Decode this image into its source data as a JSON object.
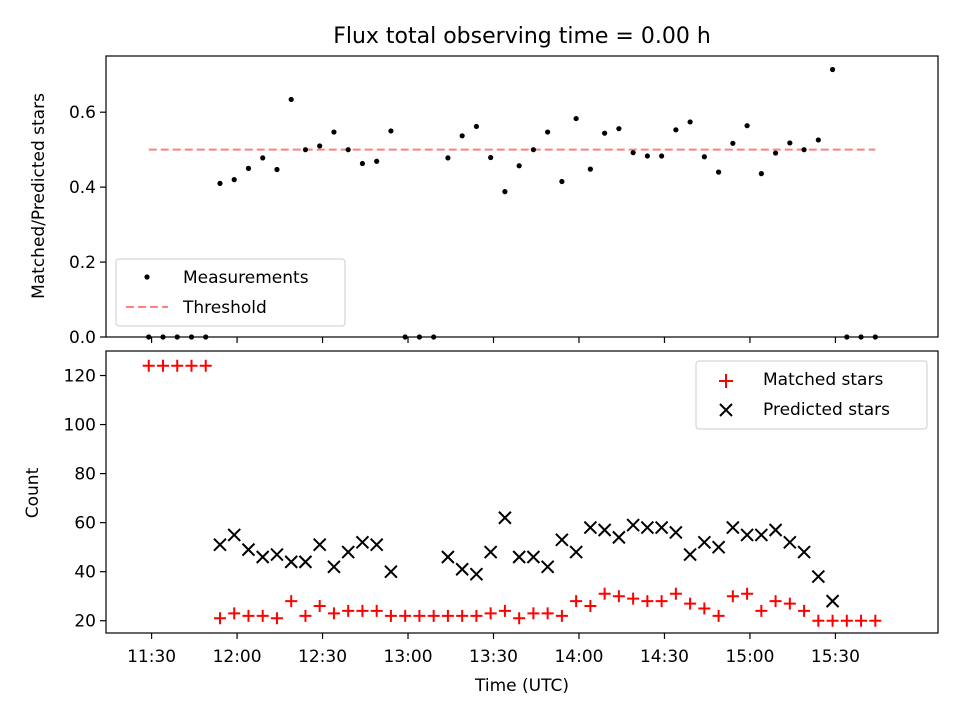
{
  "figure": {
    "title": "Flux total observing time = 0.00 h"
  },
  "chart_data": [
    {
      "type": "scatter",
      "ylabel": "Matched/Predicted stars",
      "xlim": [
        "11:14",
        "16:06"
      ],
      "ylim": [
        0,
        0.75
      ],
      "yticks": [
        "0.0",
        "0.2",
        "0.4",
        "0.6"
      ],
      "grid": false,
      "legend_placement": "lower-left",
      "series": [
        {
          "name": "Measurements",
          "marker": "dot",
          "color": "#000000",
          "points": [
            [
              "11:29",
              0.0
            ],
            [
              "11:34",
              0.0
            ],
            [
              "11:39",
              0.0
            ],
            [
              "11:44",
              0.0
            ],
            [
              "11:49",
              0.0
            ],
            [
              "11:54",
              0.41
            ],
            [
              "11:59",
              0.42
            ],
            [
              "12:04",
              0.45
            ],
            [
              "12:09",
              0.478
            ],
            [
              "12:14",
              0.447
            ],
            [
              "12:19",
              0.634
            ],
            [
              "12:24",
              0.5
            ],
            [
              "12:29",
              0.51
            ],
            [
              "12:34",
              0.547
            ],
            [
              "12:39",
              0.5
            ],
            [
              "12:44",
              0.463
            ],
            [
              "12:49",
              0.469
            ],
            [
              "12:54",
              0.55
            ],
            [
              "12:59",
              0.0
            ],
            [
              "13:04",
              0.0
            ],
            [
              "13:09",
              0.0
            ],
            [
              "13:14",
              0.478
            ],
            [
              "13:19",
              0.537
            ],
            [
              "13:24",
              0.562
            ],
            [
              "13:29",
              0.479
            ],
            [
              "13:34",
              0.388
            ],
            [
              "13:39",
              0.457
            ],
            [
              "13:44",
              0.5
            ],
            [
              "13:49",
              0.547
            ],
            [
              "13:54",
              0.415
            ],
            [
              "13:59",
              0.583
            ],
            [
              "14:04",
              0.448
            ],
            [
              "14:09",
              0.544
            ],
            [
              "14:14",
              0.556
            ],
            [
              "14:19",
              0.492
            ],
            [
              "14:24",
              0.483
            ],
            [
              "14:29",
              0.483
            ],
            [
              "14:34",
              0.553
            ],
            [
              "14:39",
              0.574
            ],
            [
              "14:44",
              0.481
            ],
            [
              "14:49",
              0.44
            ],
            [
              "14:54",
              0.517
            ],
            [
              "14:59",
              0.564
            ],
            [
              "15:04",
              0.436
            ],
            [
              "15:09",
              0.491
            ],
            [
              "15:14",
              0.518
            ],
            [
              "15:19",
              0.5
            ],
            [
              "15:24",
              0.526
            ],
            [
              "15:29",
              0.714
            ],
            [
              "15:34",
              0.0
            ],
            [
              "15:39",
              0.0
            ],
            [
              "15:44",
              0.0
            ]
          ]
        },
        {
          "name": "Threshold",
          "marker": "dashed-line",
          "color": "#ff8080",
          "points": [
            [
              "11:29",
              0.5
            ],
            [
              "15:44",
              0.5
            ]
          ]
        }
      ]
    },
    {
      "type": "scatter",
      "xlabel": "Time (UTC)",
      "ylabel": "Count",
      "xlim": [
        "11:14",
        "16:06"
      ],
      "ylim": [
        15,
        130
      ],
      "yticks": [
        "20",
        "40",
        "60",
        "80",
        "100",
        "120"
      ],
      "xticks": [
        "11:30",
        "12:00",
        "12:30",
        "13:00",
        "13:30",
        "14:00",
        "14:30",
        "15:00",
        "15:30"
      ],
      "grid": false,
      "legend_placement": "upper-right",
      "series": [
        {
          "name": "Matched stars",
          "marker": "plus",
          "color": "#ff0000",
          "points": [
            [
              "11:29",
              124
            ],
            [
              "11:34",
              124
            ],
            [
              "11:39",
              124
            ],
            [
              "11:44",
              124
            ],
            [
              "11:49",
              124
            ],
            [
              "11:54",
              21
            ],
            [
              "11:59",
              23
            ],
            [
              "12:04",
              22
            ],
            [
              "12:09",
              22
            ],
            [
              "12:14",
              21
            ],
            [
              "12:19",
              28
            ],
            [
              "12:24",
              22
            ],
            [
              "12:29",
              26
            ],
            [
              "12:34",
              23
            ],
            [
              "12:39",
              24
            ],
            [
              "12:44",
              24
            ],
            [
              "12:49",
              24
            ],
            [
              "12:54",
              22
            ],
            [
              "12:59",
              22
            ],
            [
              "13:04",
              22
            ],
            [
              "13:09",
              22
            ],
            [
              "13:14",
              22
            ],
            [
              "13:19",
              22
            ],
            [
              "13:24",
              22
            ],
            [
              "13:29",
              23
            ],
            [
              "13:34",
              24
            ],
            [
              "13:39",
              21
            ],
            [
              "13:44",
              23
            ],
            [
              "13:49",
              23
            ],
            [
              "13:54",
              22
            ],
            [
              "13:59",
              28
            ],
            [
              "14:04",
              26
            ],
            [
              "14:09",
              31
            ],
            [
              "14:14",
              30
            ],
            [
              "14:19",
              29
            ],
            [
              "14:24",
              28
            ],
            [
              "14:29",
              28
            ],
            [
              "14:34",
              31
            ],
            [
              "14:39",
              27
            ],
            [
              "14:44",
              25
            ],
            [
              "14:49",
              22
            ],
            [
              "14:54",
              30
            ],
            [
              "14:59",
              31
            ],
            [
              "15:04",
              24
            ],
            [
              "15:09",
              28
            ],
            [
              "15:14",
              27
            ],
            [
              "15:19",
              24
            ],
            [
              "15:24",
              20
            ],
            [
              "15:29",
              20
            ],
            [
              "15:34",
              20
            ],
            [
              "15:39",
              20
            ],
            [
              "15:44",
              20
            ]
          ]
        },
        {
          "name": "Predicted stars",
          "marker": "x",
          "color": "#000000",
          "points": [
            [
              "11:54",
              51
            ],
            [
              "11:59",
              55
            ],
            [
              "12:04",
              49
            ],
            [
              "12:09",
              46
            ],
            [
              "12:14",
              47
            ],
            [
              "12:19",
              44
            ],
            [
              "12:24",
              44
            ],
            [
              "12:29",
              51
            ],
            [
              "12:34",
              42
            ],
            [
              "12:39",
              48
            ],
            [
              "12:44",
              52
            ],
            [
              "12:49",
              51
            ],
            [
              "12:54",
              40
            ],
            [
              "13:14",
              46
            ],
            [
              "13:19",
              41
            ],
            [
              "13:24",
              39
            ],
            [
              "13:29",
              48
            ],
            [
              "13:34",
              62
            ],
            [
              "13:39",
              46
            ],
            [
              "13:44",
              46
            ],
            [
              "13:49",
              42
            ],
            [
              "13:54",
              53
            ],
            [
              "13:59",
              48
            ],
            [
              "14:04",
              58
            ],
            [
              "14:09",
              57
            ],
            [
              "14:14",
              54
            ],
            [
              "14:19",
              59
            ],
            [
              "14:24",
              58
            ],
            [
              "14:29",
              58
            ],
            [
              "14:34",
              56
            ],
            [
              "14:39",
              47
            ],
            [
              "14:44",
              52
            ],
            [
              "14:49",
              50
            ],
            [
              "14:54",
              58
            ],
            [
              "14:59",
              55
            ],
            [
              "15:04",
              55
            ],
            [
              "15:09",
              57
            ],
            [
              "15:14",
              52
            ],
            [
              "15:19",
              48
            ],
            [
              "15:24",
              38
            ],
            [
              "15:29",
              28
            ]
          ]
        }
      ]
    }
  ]
}
